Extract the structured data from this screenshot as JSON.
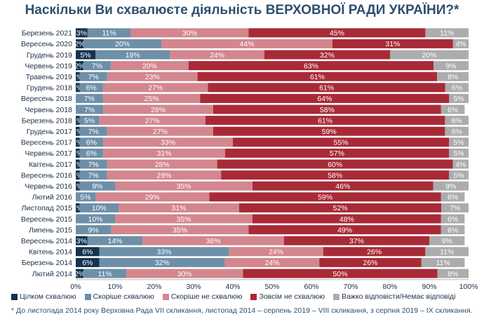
{
  "chart_data": {
    "type": "bar",
    "orientation": "horizontal",
    "stacked": true,
    "title": "Наскільки Ви схвалюєте діяльність ВЕРХОВНОЇ РАДИ УКРАЇНИ?*",
    "xlim": [
      0,
      100
    ],
    "x_ticks": [
      "0%",
      "10%",
      "20%",
      "30%",
      "40%",
      "50%",
      "60%",
      "70%",
      "80%",
      "90%",
      "100%"
    ],
    "categories": [
      "Березень 2021",
      "Вересень 2020",
      "Грудень 2019",
      "Червень 2019",
      "Травень 2019",
      "Грудень 2018",
      "Вересень 2018",
      "Червень 2018",
      "Березень 2018",
      "Грудень 2017",
      "Вересень 2017",
      "Червень 2017",
      "Квітень 2017",
      "Вересень 2016",
      "Червень 2016",
      "Лютий 2016",
      "Листопад 2015",
      "Вересень 2015",
      "Липень 2015",
      "Вересень 2014",
      "Квітень 2014",
      "Березень 2014",
      "Лютий 2014"
    ],
    "series": [
      {
        "name": "Цілком схвалюю",
        "color": "#14334f",
        "values": [
          3,
          2,
          5,
          2,
          1,
          1,
          0,
          0,
          1,
          1,
          1,
          1,
          1,
          1,
          1,
          0,
          1,
          0,
          0,
          3,
          6,
          6,
          2
        ],
        "labels": [
          "3%",
          "2%",
          "5%",
          "2%",
          "1%",
          "1%",
          "",
          "",
          "1%",
          "1%",
          "1%",
          "1%",
          "1%",
          "1%",
          "1%",
          "",
          "1%",
          "",
          "",
          "3%",
          "6%",
          "6%",
          "2%"
        ]
      },
      {
        "name": "Скоріше схвалюю",
        "color": "#6d8fa8",
        "values": [
          11,
          20,
          19,
          7,
          7,
          6,
          7,
          7,
          5,
          7,
          6,
          6,
          7,
          7,
          9,
          5,
          10,
          10,
          9,
          14,
          33,
          32,
          11
        ],
        "labels": [
          "11%",
          "20%",
          "19%",
          "7%",
          "7%",
          "6%",
          "7%",
          "7%",
          "5%",
          "7%",
          "6%",
          "6%",
          "7%",
          "7%",
          "9%",
          "5%",
          "10%",
          "10%",
          "9%",
          "14%",
          "33%",
          "32%",
          "11%"
        ]
      },
      {
        "name": "Скоріше не схвалюю",
        "color": "#d3868e",
        "values": [
          30,
          44,
          24,
          20,
          23,
          27,
          25,
          28,
          27,
          27,
          33,
          31,
          28,
          29,
          35,
          29,
          31,
          35,
          35,
          36,
          24,
          24,
          30
        ],
        "labels": [
          "30%",
          "44%",
          "24%",
          "20%",
          "23%",
          "27%",
          "25%",
          "28%",
          "27%",
          "27%",
          "33%",
          "31%",
          "28%",
          "29%",
          "35%",
          "29%",
          "31%",
          "35%",
          "35%",
          "36%",
          "24%",
          "24%",
          "30%"
        ]
      },
      {
        "name": "Зовсім не схвалюю",
        "color": "#a82a37",
        "values": [
          45,
          31,
          32,
          63,
          61,
          61,
          64,
          58,
          61,
          59,
          55,
          57,
          60,
          58,
          46,
          59,
          52,
          48,
          49,
          37,
          26,
          26,
          50
        ],
        "labels": [
          "45%",
          "31%",
          "32%",
          "63%",
          "61%",
          "61%",
          "64%",
          "58%",
          "61%",
          "59%",
          "55%",
          "57%",
          "60%",
          "58%",
          "46%",
          "59%",
          "52%",
          "48%",
          "49%",
          "37%",
          "26%",
          "26%",
          "50%"
        ]
      },
      {
        "name": "Важко відповісти/Немає відповіді",
        "color": "#acacac",
        "values": [
          11,
          4,
          20,
          9,
          8,
          6,
          5,
          6,
          6,
          6,
          5,
          5,
          4,
          5,
          9,
          6,
          7,
          6,
          6,
          9,
          11,
          11,
          8
        ],
        "labels": [
          "11%",
          "4%",
          "20%",
          "9%",
          "8%",
          "6%",
          "5%",
          "6%",
          "6%",
          "6%",
          "5%",
          "5%",
          "4%",
          "5%",
          "9%",
          "6%",
          "7%",
          "6%",
          "6%",
          "9%",
          "11%",
          "11%",
          "8%"
        ]
      }
    ],
    "legend_position": "bottom",
    "grid": false
  },
  "footnote": "* До листопада 2014 року Верховна Рада VII скликання, листопад 2014 – серпень 2019 – VIII скликання, з серпня 2019 – IX скликання."
}
